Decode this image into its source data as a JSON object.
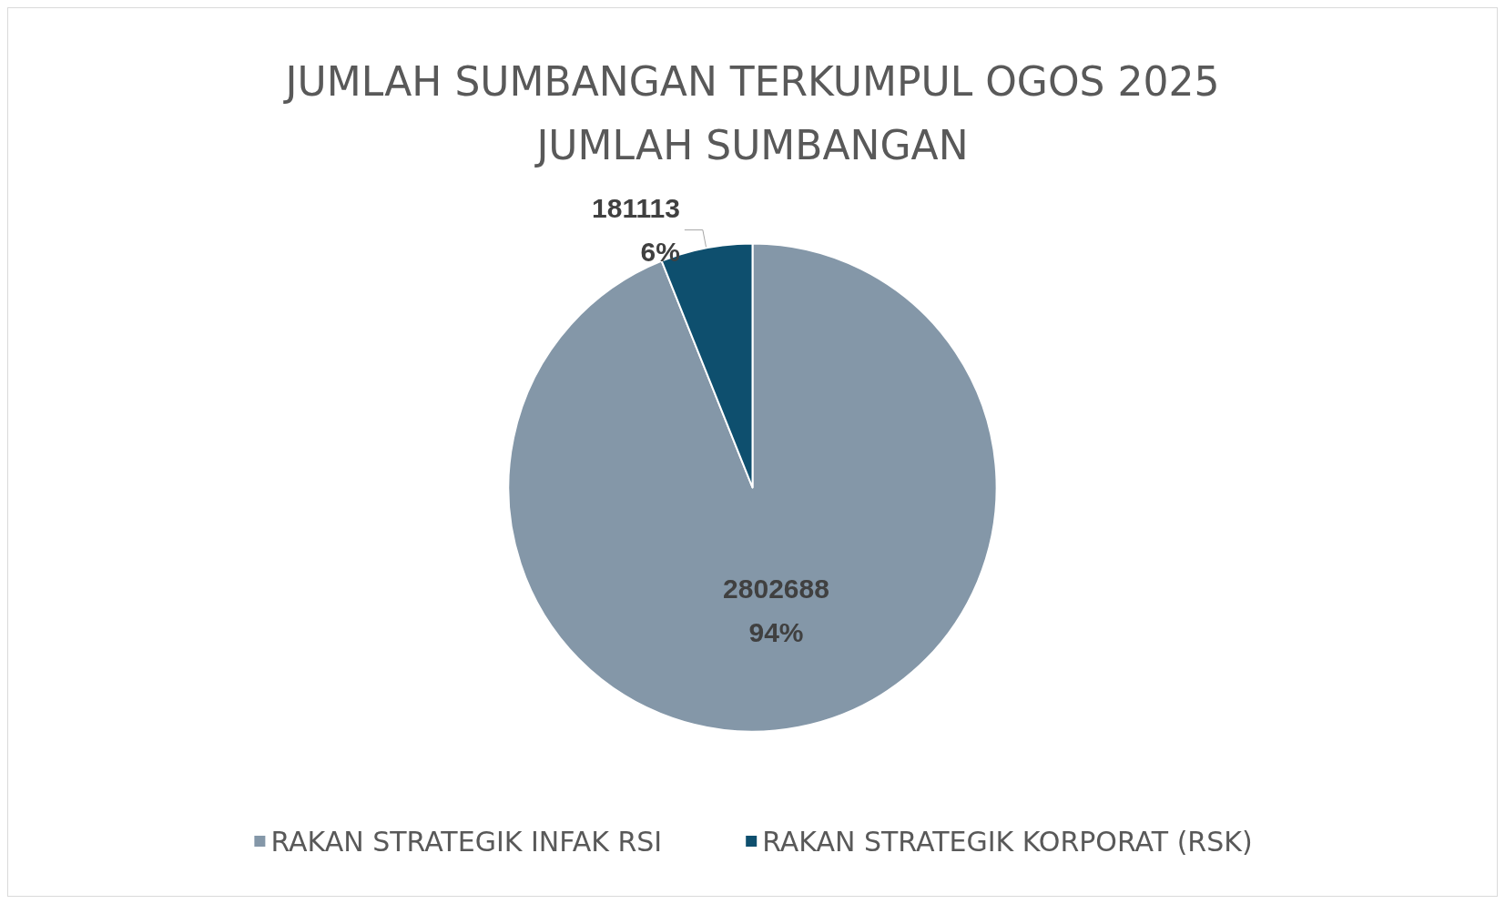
{
  "chart_data": {
    "type": "pie",
    "title": "JUMLAH SUMBANGAN TERKUMPUL OGOS 2025\nJUMLAH SUMBANGAN",
    "categories": [
      "RAKAN STRATEGIK INFAK RSI",
      "RAKAN STRATEGIK KORPORAT (RSK)"
    ],
    "values": [
      2802688,
      181113
    ],
    "colors": [
      "#8497a8",
      "#0e4f6e"
    ],
    "value_labels": [
      "2802688\n94%",
      "181113\n6%"
    ],
    "legend": "bottom"
  }
}
